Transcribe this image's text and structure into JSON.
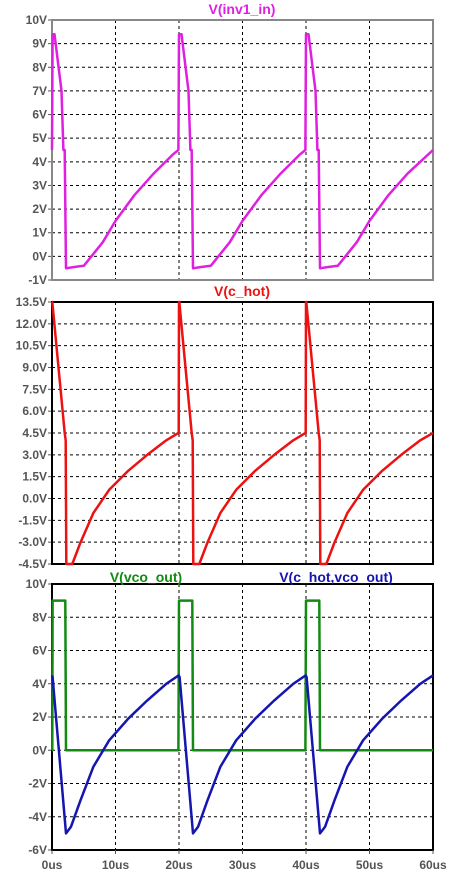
{
  "chart_data": [
    {
      "type": "line",
      "title": "V(inv1_in)",
      "x_unit": "us",
      "ylim": [
        -1,
        10
      ],
      "y_ticks": [
        "10V",
        "9V",
        "8V",
        "7V",
        "6V",
        "5V",
        "4V",
        "3V",
        "2V",
        "1V",
        "0V",
        "-1V"
      ],
      "grid": true,
      "colors": {
        "series": "#e020e0"
      },
      "series": [
        {
          "name": "V(inv1_in)",
          "x": [
            0,
            0.1,
            0.4,
            1.5,
            1.8,
            2.0,
            2.2,
            2.3,
            3.5,
            5.0,
            8.0,
            10.0,
            13.0,
            16.0,
            19.0,
            19.9,
            20.0,
            20.1,
            20.4,
            21.5,
            21.8,
            22.0,
            22.2,
            22.3,
            23.5,
            25.0,
            28.0,
            30.0,
            33.0,
            36.0,
            39.0,
            39.9,
            40.0,
            40.1,
            40.4,
            41.5,
            41.8,
            42.0,
            42.2,
            42.3,
            43.5,
            45.0,
            48.0,
            50.0,
            53.0,
            56.0,
            60.0
          ],
          "y": [
            4.5,
            9.4,
            9.4,
            7.0,
            4.5,
            4.5,
            -0.5,
            -0.5,
            -0.45,
            -0.4,
            0.6,
            1.5,
            2.6,
            3.5,
            4.3,
            4.5,
            9.4,
            9.4,
            9.4,
            7.0,
            4.5,
            4.5,
            -0.5,
            -0.5,
            -0.45,
            -0.4,
            0.6,
            1.5,
            2.6,
            3.5,
            4.3,
            4.5,
            9.4,
            9.4,
            9.4,
            7.0,
            4.5,
            4.5,
            -0.5,
            -0.5,
            -0.45,
            -0.4,
            0.6,
            1.5,
            2.6,
            3.5,
            4.5
          ]
        }
      ]
    },
    {
      "type": "line",
      "title": "V(c_hot)",
      "x_unit": "us",
      "ylim": [
        -4.5,
        13.5
      ],
      "y_ticks": [
        "13.5V",
        "12.0V",
        "10.5V",
        "9.0V",
        "7.5V",
        "6.0V",
        "4.5V",
        "3.0V",
        "1.5V",
        "0.0V",
        "-1.5V",
        "-3.0V",
        "-4.5V"
      ],
      "grid": true,
      "colors": {
        "series": "#ee1111"
      },
      "series": [
        {
          "name": "V(c_hot)",
          "x": [
            0,
            0.05,
            2.0,
            2.15,
            2.25,
            3.2,
            4.5,
            6.5,
            9.0,
            12.0,
            15.0,
            18.0,
            19.9,
            19.95,
            20.0,
            20.05,
            22.0,
            22.15,
            22.25,
            23.2,
            24.5,
            26.5,
            29.0,
            32.0,
            35.0,
            38.0,
            39.9,
            39.95,
            40.0,
            40.05,
            42.0,
            42.15,
            42.25,
            43.2,
            44.5,
            46.5,
            49.0,
            52.0,
            55.0,
            58.0,
            60.0
          ],
          "y": [
            13.5,
            13.5,
            4.5,
            4.0,
            -4.5,
            -4.5,
            -3.0,
            -1.0,
            0.6,
            1.9,
            3.0,
            4.0,
            4.5,
            4.5,
            13.5,
            13.5,
            4.5,
            4.0,
            -4.5,
            -4.5,
            -3.0,
            -1.0,
            0.6,
            1.9,
            3.0,
            4.0,
            4.5,
            4.5,
            13.5,
            13.5,
            4.5,
            4.0,
            -4.5,
            -4.5,
            -3.0,
            -1.0,
            0.6,
            1.9,
            3.0,
            4.0,
            4.5
          ]
        }
      ]
    },
    {
      "type": "line",
      "title": "V(vco_out)",
      "title_right": "V(c_hot,vco_out)",
      "x_unit": "us",
      "ylim": [
        -6,
        10
      ],
      "y_ticks": [
        "10V",
        "8V",
        "6V",
        "4V",
        "2V",
        "0V",
        "-2V",
        "-4V",
        "-6V"
      ],
      "x_ticks": [
        "0us",
        "10us",
        "20us",
        "30us",
        "40us",
        "50us",
        "60us"
      ],
      "xlim": [
        0,
        60
      ],
      "grid": true,
      "colors": {
        "vco_out": "#138a13",
        "c_hot_vco_out": "#1515b0"
      },
      "series": [
        {
          "name": "V(vco_out)",
          "x": [
            0,
            0.05,
            0.1,
            2.1,
            2.2,
            19.9,
            20.0,
            22.1,
            22.2,
            39.9,
            40.0,
            42.1,
            42.2,
            60.0
          ],
          "y": [
            0,
            0,
            9,
            9,
            0,
            0,
            9,
            9,
            0,
            0,
            9,
            9,
            0,
            0
          ]
        },
        {
          "name": "V(c_hot,vco_out)",
          "x": [
            0,
            0.1,
            2.2,
            3.0,
            4.5,
            6.5,
            9.0,
            12.0,
            15.0,
            18.0,
            19.95,
            20.1,
            22.2,
            23.0,
            24.5,
            26.5,
            29.0,
            32.0,
            35.0,
            38.0,
            39.95,
            40.1,
            42.2,
            43.0,
            44.5,
            46.5,
            49.0,
            52.0,
            55.0,
            58.0,
            60.0
          ],
          "y": [
            4.5,
            4.4,
            -5.0,
            -4.6,
            -3.0,
            -1.0,
            0.6,
            1.9,
            3.0,
            4.0,
            4.5,
            4.4,
            -5.0,
            -4.6,
            -3.0,
            -1.0,
            0.6,
            1.9,
            3.0,
            4.0,
            4.5,
            4.4,
            -5.0,
            -4.6,
            -3.0,
            -1.0,
            0.6,
            1.9,
            3.0,
            4.0,
            4.5
          ]
        }
      ]
    }
  ]
}
